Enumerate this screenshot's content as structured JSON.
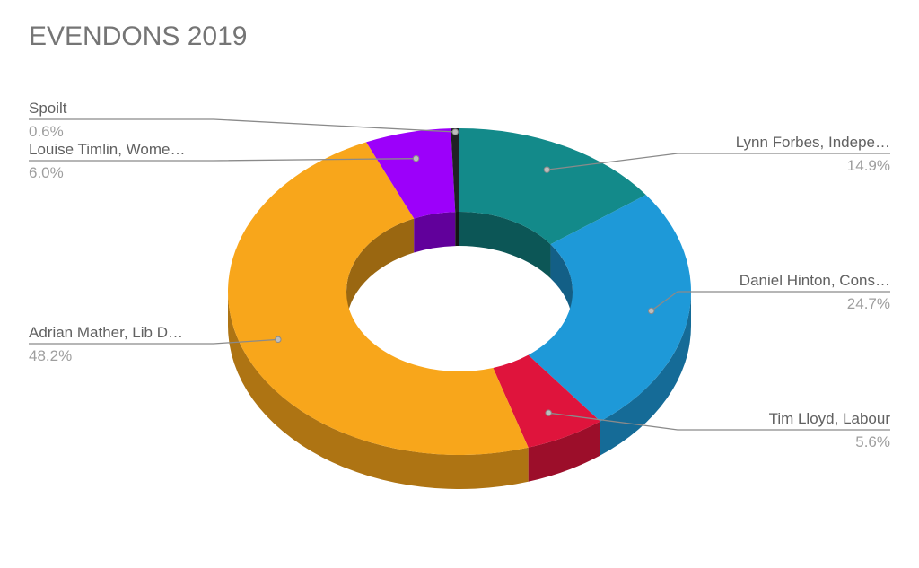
{
  "chart_data": {
    "type": "pie",
    "style": "3d-donut",
    "title": "EVENDONS 2019",
    "slices": [
      {
        "label": "Lynn Forbes, Indepe…",
        "value": 14.9,
        "display": "14.9%",
        "color": "#138a8a"
      },
      {
        "label": "Daniel Hinton, Cons…",
        "value": 24.7,
        "display": "24.7%",
        "color": "#1e99d8"
      },
      {
        "label": "Tim Lloyd, Labour",
        "value": 5.6,
        "display": "5.6%",
        "color": "#df143c"
      },
      {
        "label": "Adrian Mather, Lib D…",
        "value": 48.2,
        "display": "48.2%",
        "color": "#f8a61b"
      },
      {
        "label": "Louise Timlin, Wome…",
        "value": 6.0,
        "display": "6.0%",
        "color": "#9c00fa"
      },
      {
        "label": "Spoilt",
        "value": 0.6,
        "display": "0.6%",
        "color": "#202124"
      }
    ]
  }
}
